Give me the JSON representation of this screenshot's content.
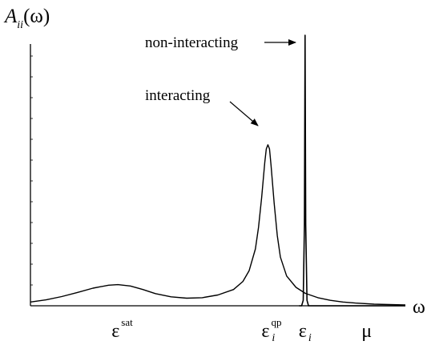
{
  "chart_data": {
    "type": "line",
    "title": "",
    "ylabel_main": "A",
    "ylabel_sub": "ii",
    "ylabel_arg": "(ω)",
    "xlabel": "ω",
    "grid": false,
    "legend": "none",
    "ylim": [
      0,
      1.0
    ],
    "series": [
      {
        "name": "interacting",
        "points": [
          [
            0.0,
            0.014
          ],
          [
            0.05,
            0.022
          ],
          [
            0.1,
            0.034
          ],
          [
            0.15,
            0.049
          ],
          [
            0.2,
            0.065
          ],
          [
            0.25,
            0.076
          ],
          [
            0.28,
            0.078
          ],
          [
            0.32,
            0.073
          ],
          [
            0.36,
            0.06
          ],
          [
            0.4,
            0.045
          ],
          [
            0.45,
            0.033
          ],
          [
            0.5,
            0.028
          ],
          [
            0.55,
            0.03
          ],
          [
            0.6,
            0.04
          ],
          [
            0.65,
            0.06
          ],
          [
            0.68,
            0.09
          ],
          [
            0.7,
            0.13
          ],
          [
            0.72,
            0.21
          ],
          [
            0.73,
            0.29
          ],
          [
            0.74,
            0.4
          ],
          [
            0.75,
            0.53
          ],
          [
            0.755,
            0.58
          ],
          [
            0.76,
            0.595
          ],
          [
            0.765,
            0.58
          ],
          [
            0.77,
            0.52
          ],
          [
            0.78,
            0.38
          ],
          [
            0.79,
            0.26
          ],
          [
            0.8,
            0.18
          ],
          [
            0.82,
            0.11
          ],
          [
            0.85,
            0.068
          ],
          [
            0.88,
            0.046
          ],
          [
            0.92,
            0.03
          ],
          [
            0.96,
            0.02
          ],
          [
            1.0,
            0.014
          ],
          [
            1.04,
            0.01
          ],
          [
            1.1,
            0.006
          ],
          [
            1.2,
            0.003
          ]
        ]
      },
      {
        "name": "non-interacting",
        "points": [
          [
            0.86,
            0.0
          ],
          [
            0.868,
            0.0
          ],
          [
            0.873,
            0.02
          ],
          [
            0.877,
            0.3
          ],
          [
            0.879,
            1.0
          ],
          [
            0.881,
            0.3
          ],
          [
            0.885,
            0.02
          ],
          [
            0.89,
            0.0
          ],
          [
            1.2,
            0.0
          ]
        ]
      }
    ],
    "ticks": [
      {
        "x": 0.28,
        "main": "ε",
        "sup": "sat",
        "sub": ""
      },
      {
        "x": 0.76,
        "main": "ε",
        "sup": "qp",
        "sub": "i"
      },
      {
        "x": 0.879,
        "main": "ε",
        "sup": "",
        "sub": "i"
      },
      {
        "x": 1.08,
        "main": "μ",
        "sup": "",
        "sub": ""
      }
    ],
    "annotations": [
      {
        "text": "non-interacting",
        "series": "non-interacting"
      },
      {
        "text": "interacting",
        "series": "interacting"
      }
    ]
  }
}
